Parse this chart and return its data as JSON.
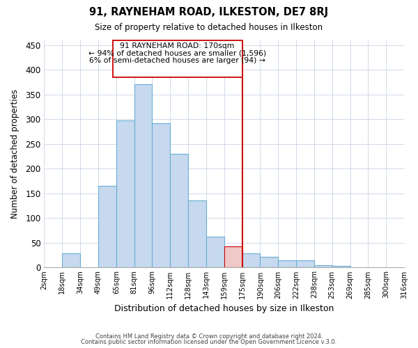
{
  "title": "91, RAYNEHAM ROAD, ILKESTON, DE7 8RJ",
  "subtitle": "Size of property relative to detached houses in Ilkeston",
  "xlabel": "Distribution of detached houses by size in Ilkeston",
  "ylabel": "Number of detached properties",
  "footer_lines": [
    "Contains HM Land Registry data © Crown copyright and database right 2024.",
    "Contains public sector information licensed under the Open Government Licence v.3.0."
  ],
  "bin_labels": [
    "2sqm",
    "18sqm",
    "34sqm",
    "49sqm",
    "65sqm",
    "81sqm",
    "96sqm",
    "112sqm",
    "128sqm",
    "143sqm",
    "159sqm",
    "175sqm",
    "190sqm",
    "206sqm",
    "222sqm",
    "238sqm",
    "253sqm",
    "269sqm",
    "285sqm",
    "300sqm",
    "316sqm"
  ],
  "bar_heights": [
    0,
    28,
    0,
    165,
    297,
    370,
    291,
    230,
    135,
    62,
    43,
    28,
    22,
    14,
    14,
    5,
    3,
    0,
    0,
    0
  ],
  "bar_color": "#c6d9ee",
  "bar_edge_color": "#6aaed6",
  "highlight_bar_index": 10,
  "highlight_color": "#f0c8c8",
  "highlight_edge_color": "#cc0000",
  "vline_label_index": 11,
  "vline_color": "#cc0000",
  "annotation_line1": "91 RAYNEHAM ROAD: 170sqm",
  "annotation_line2": "← 94% of detached houses are smaller (1,596)",
  "annotation_line3": "6% of semi-detached houses are larger (94) →",
  "ylim": [
    0,
    460
  ],
  "yticks": [
    0,
    50,
    100,
    150,
    200,
    250,
    300,
    350,
    400,
    450
  ],
  "background_color": "#ffffff",
  "grid_color": "#d0d8e8"
}
